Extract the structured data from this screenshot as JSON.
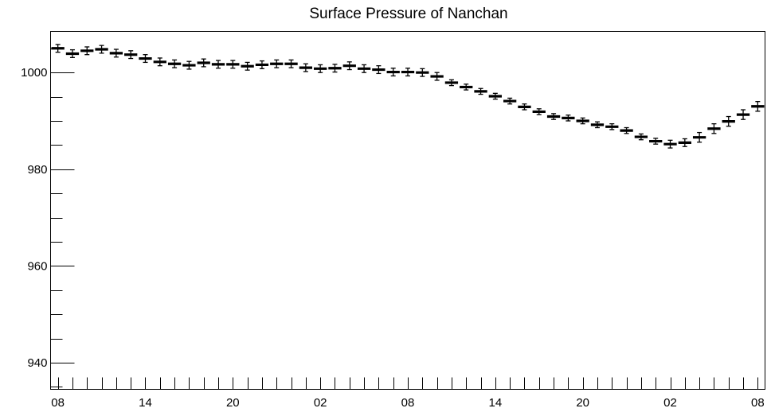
{
  "chart_data": {
    "type": "scatter",
    "title": "Surface Pressure of Nanchan",
    "xlabel": "",
    "ylabel": "",
    "ylim": [
      934.5,
      1008.5
    ],
    "x_tick_labels": [
      "08",
      "14",
      "20",
      "02",
      "08",
      "14",
      "20",
      "02",
      "08"
    ],
    "y_tick_labels": [
      940,
      960,
      980,
      1000
    ],
    "grid": false,
    "legend": "none",
    "error_bars": true,
    "series": [
      {
        "values": [
          1005.0,
          1003.9,
          1004.5,
          1004.8,
          1004.0,
          1003.7,
          1002.9,
          1002.2,
          1001.8,
          1001.5,
          1002.0,
          1001.7,
          1001.7,
          1001.3,
          1001.6,
          1001.8,
          1001.8,
          1001.0,
          1000.8,
          1000.9,
          1001.4,
          1000.8,
          1000.6,
          1000.1,
          1000.1,
          1000.0,
          999.2,
          997.9,
          997.0,
          996.1,
          995.1,
          994.1,
          992.9,
          991.9,
          990.9,
          990.6,
          990.0,
          989.2,
          988.8,
          988.0,
          986.7,
          985.8,
          985.2,
          985.5,
          986.6,
          988.4,
          989.9,
          991.3,
          993.0
        ],
        "errors": [
          0.8,
          0.8,
          0.8,
          0.8,
          0.8,
          0.8,
          0.8,
          0.8,
          0.8,
          0.8,
          0.8,
          0.8,
          0.8,
          0.8,
          0.8,
          0.8,
          0.8,
          0.8,
          0.8,
          0.8,
          0.8,
          0.8,
          0.8,
          0.8,
          0.8,
          0.8,
          0.8,
          0.6,
          0.6,
          0.6,
          0.6,
          0.6,
          0.6,
          0.6,
          0.6,
          0.6,
          0.6,
          0.6,
          0.6,
          0.6,
          0.6,
          0.6,
          0.8,
          0.8,
          1.0,
          1.0,
          1.0,
          1.0,
          1.0
        ]
      }
    ]
  }
}
